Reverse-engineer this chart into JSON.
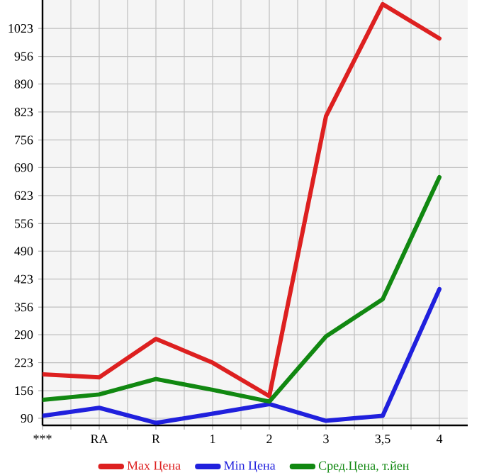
{
  "chart_data": {
    "type": "line",
    "categories": [
      "***",
      "RA",
      "R",
      "1",
      "2",
      "3",
      "3,5",
      "4"
    ],
    "series": [
      {
        "name": "Max Цена",
        "color": "#dd2020",
        "values": [
          195,
          188,
          280,
          223,
          143,
          813,
          1081,
          999
        ]
      },
      {
        "name": "Min Цена",
        "color": "#2020dd",
        "values": [
          96,
          115,
          79,
          101,
          124,
          84,
          96,
          399
        ]
      },
      {
        "name": "Сред.Цена, т.йен",
        "color": "#118811",
        "values": [
          134,
          147,
          184,
          158,
          130,
          286,
          375,
          667
        ]
      }
    ],
    "ylim": [
      73,
      1091
    ],
    "yticks": [
      90,
      156,
      223,
      290,
      356,
      423,
      490,
      556,
      623,
      690,
      756,
      823,
      890,
      956,
      1023
    ],
    "grid": true,
    "legend": "bottom",
    "marker": "none",
    "line_style": "solid"
  }
}
